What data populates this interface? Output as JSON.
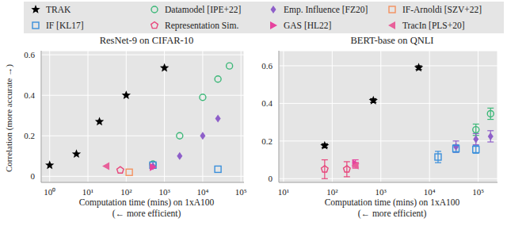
{
  "chart_data": [
    {
      "type": "scatter",
      "title": "ResNet-9 on CIFAR-10",
      "log": "x",
      "grid": true,
      "legend": "top",
      "xlabel": [
        "Computation time (mins) on 1xA100",
        "(← more efficient)"
      ],
      "ylabel": "Correlation (more accurate →)",
      "xlim": [
        0.6,
        120000
      ],
      "xticks": [
        {
          "value": 1,
          "label": "10⁰"
        },
        {
          "value": 10,
          "label": "10¹"
        },
        {
          "value": 100,
          "label": "10²"
        },
        {
          "value": 1000,
          "label": "10³"
        },
        {
          "value": 10000,
          "label": "10⁴"
        },
        {
          "value": 100000,
          "label": "10⁵"
        }
      ],
      "ylim": [
        -0.03,
        0.62
      ],
      "yticks": [
        0,
        0.2,
        0.4,
        0.6
      ],
      "series": [
        {
          "name": "TRAK",
          "color": "#000000",
          "marker": "star",
          "x": [
            1,
            5,
            20,
            100,
            1000
          ],
          "values": [
            0.055,
            0.11,
            0.27,
            0.4,
            0.535
          ]
        },
        {
          "name": "Datamodel [IPE+22]",
          "color": "#3cb878",
          "marker": "circle",
          "x": [
            500,
            2500,
            10000,
            25000,
            50000
          ],
          "values": [
            0.06,
            0.2,
            0.39,
            0.48,
            0.545
          ]
        },
        {
          "name": "Emp. Influence [FZ20]",
          "color": "#8e5fc9",
          "marker": "diamond",
          "x": [
            500,
            2500,
            10000,
            25000
          ],
          "values": [
            0.05,
            0.1,
            0.2,
            0.285
          ]
        },
        {
          "name": "IF-Arnoldi [SZV+22]",
          "color": "#f4915e",
          "marker": "square",
          "x": [
            120
          ],
          "values": [
            0.02
          ]
        },
        {
          "name": "IF [KL17]",
          "color": "#3a8fdb",
          "marker": "square",
          "x": [
            500,
            25000
          ],
          "values": [
            0.055,
            0.035
          ]
        },
        {
          "name": "Representation Sim.",
          "color": "#e8467c",
          "marker": "pentagon",
          "x": [
            70
          ],
          "values": [
            0.03
          ]
        },
        {
          "name": "GAS [HL22]",
          "color": "#e6439e",
          "marker": "triangle-right",
          "x": [
            500
          ],
          "values": [
            0.045
          ]
        },
        {
          "name": "TracIn [PLS+20]",
          "color": "#e8609a",
          "marker": "triangle-left",
          "x": [
            30
          ],
          "values": [
            0.05
          ]
        }
      ]
    },
    {
      "type": "scatter",
      "title": "BERT-base on QNLI",
      "log": "x",
      "grid": true,
      "xlabel": [
        "Computation time (mins) on 1xA100",
        "(← more efficient)"
      ],
      "xlim": [
        8,
        250000
      ],
      "xticks": [
        {
          "value": 10,
          "label": "10¹"
        },
        {
          "value": 100,
          "label": "10²"
        },
        {
          "value": 1000,
          "label": "10³"
        },
        {
          "value": 10000,
          "label": "10⁴"
        },
        {
          "value": 100000,
          "label": "10⁵"
        }
      ],
      "ylim": [
        -0.02,
        0.68
      ],
      "yticks": [
        0,
        0.2,
        0.4,
        0.6
      ],
      "series": [
        {
          "name": "TRAK",
          "color": "#000000",
          "marker": "star",
          "x": [
            70,
            700,
            6000
          ],
          "values": [
            0.175,
            0.415,
            0.59
          ],
          "errors": [
            0.01,
            0.01,
            0.01
          ]
        },
        {
          "name": "Datamodel [IPE+22]",
          "color": "#3cb878",
          "marker": "circle",
          "x": [
            90000,
            180000
          ],
          "values": [
            0.26,
            0.345
          ],
          "errors": [
            0.03,
            0.03
          ]
        },
        {
          "name": "Emp. Influence [FZ20]",
          "color": "#8e5fc9",
          "marker": "diamond",
          "x": [
            35000,
            90000,
            180000
          ],
          "values": [
            0.17,
            0.21,
            0.225
          ],
          "errors": [
            0.03,
            0.03,
            0.03
          ]
        },
        {
          "name": "IF [KL17]",
          "color": "#3a8fdb",
          "marker": "square",
          "x": [
            15000,
            35000,
            90000
          ],
          "values": [
            0.115,
            0.16,
            0.155
          ],
          "errors": [
            0.03,
            0.02,
            0.02
          ]
        },
        {
          "name": "Representation Sim.",
          "color": "#e8467c",
          "marker": "pentagon",
          "x": [
            70,
            200
          ],
          "values": [
            0.05,
            0.05
          ],
          "errors": [
            0.05,
            0.04
          ]
        },
        {
          "name": "GAS [HL22]",
          "color": "#e6439e",
          "marker": "triangle-right",
          "x": [
            300
          ],
          "values": [
            0.08
          ],
          "errors": [
            0.02
          ]
        },
        {
          "name": "TracIn [PLS+20]",
          "color": "#e8609a",
          "marker": "triangle-left",
          "x": [
            300
          ],
          "values": [
            0.07
          ],
          "errors": [
            0.015
          ]
        }
      ]
    }
  ]
}
